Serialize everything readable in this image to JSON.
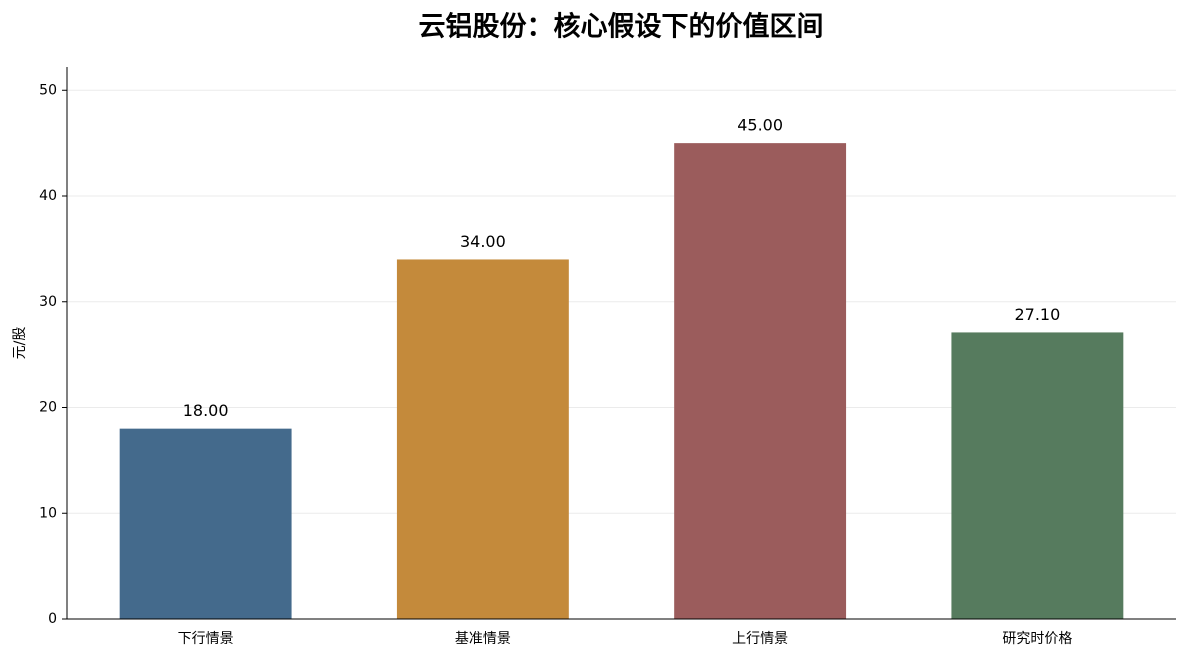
{
  "chart_data": {
    "type": "bar",
    "title": "云铝股份：核心假设下的价值区间",
    "y_label": "元/股",
    "categories": [
      "下行情景",
      "基准情景",
      "上行情景",
      "研究时价格"
    ],
    "values": [
      18,
      34,
      45,
      27.1
    ],
    "value_labels": [
      "18.00",
      "34.00",
      "45.00",
      "27.10"
    ],
    "colors": [
      "#446a8c",
      "#c48a3b",
      "#9b5c5c",
      "#567b5e"
    ],
    "ylim": [
      0,
      52.2
    ],
    "yticks": [
      0,
      10,
      20,
      30,
      40,
      50
    ],
    "grid": true
  }
}
